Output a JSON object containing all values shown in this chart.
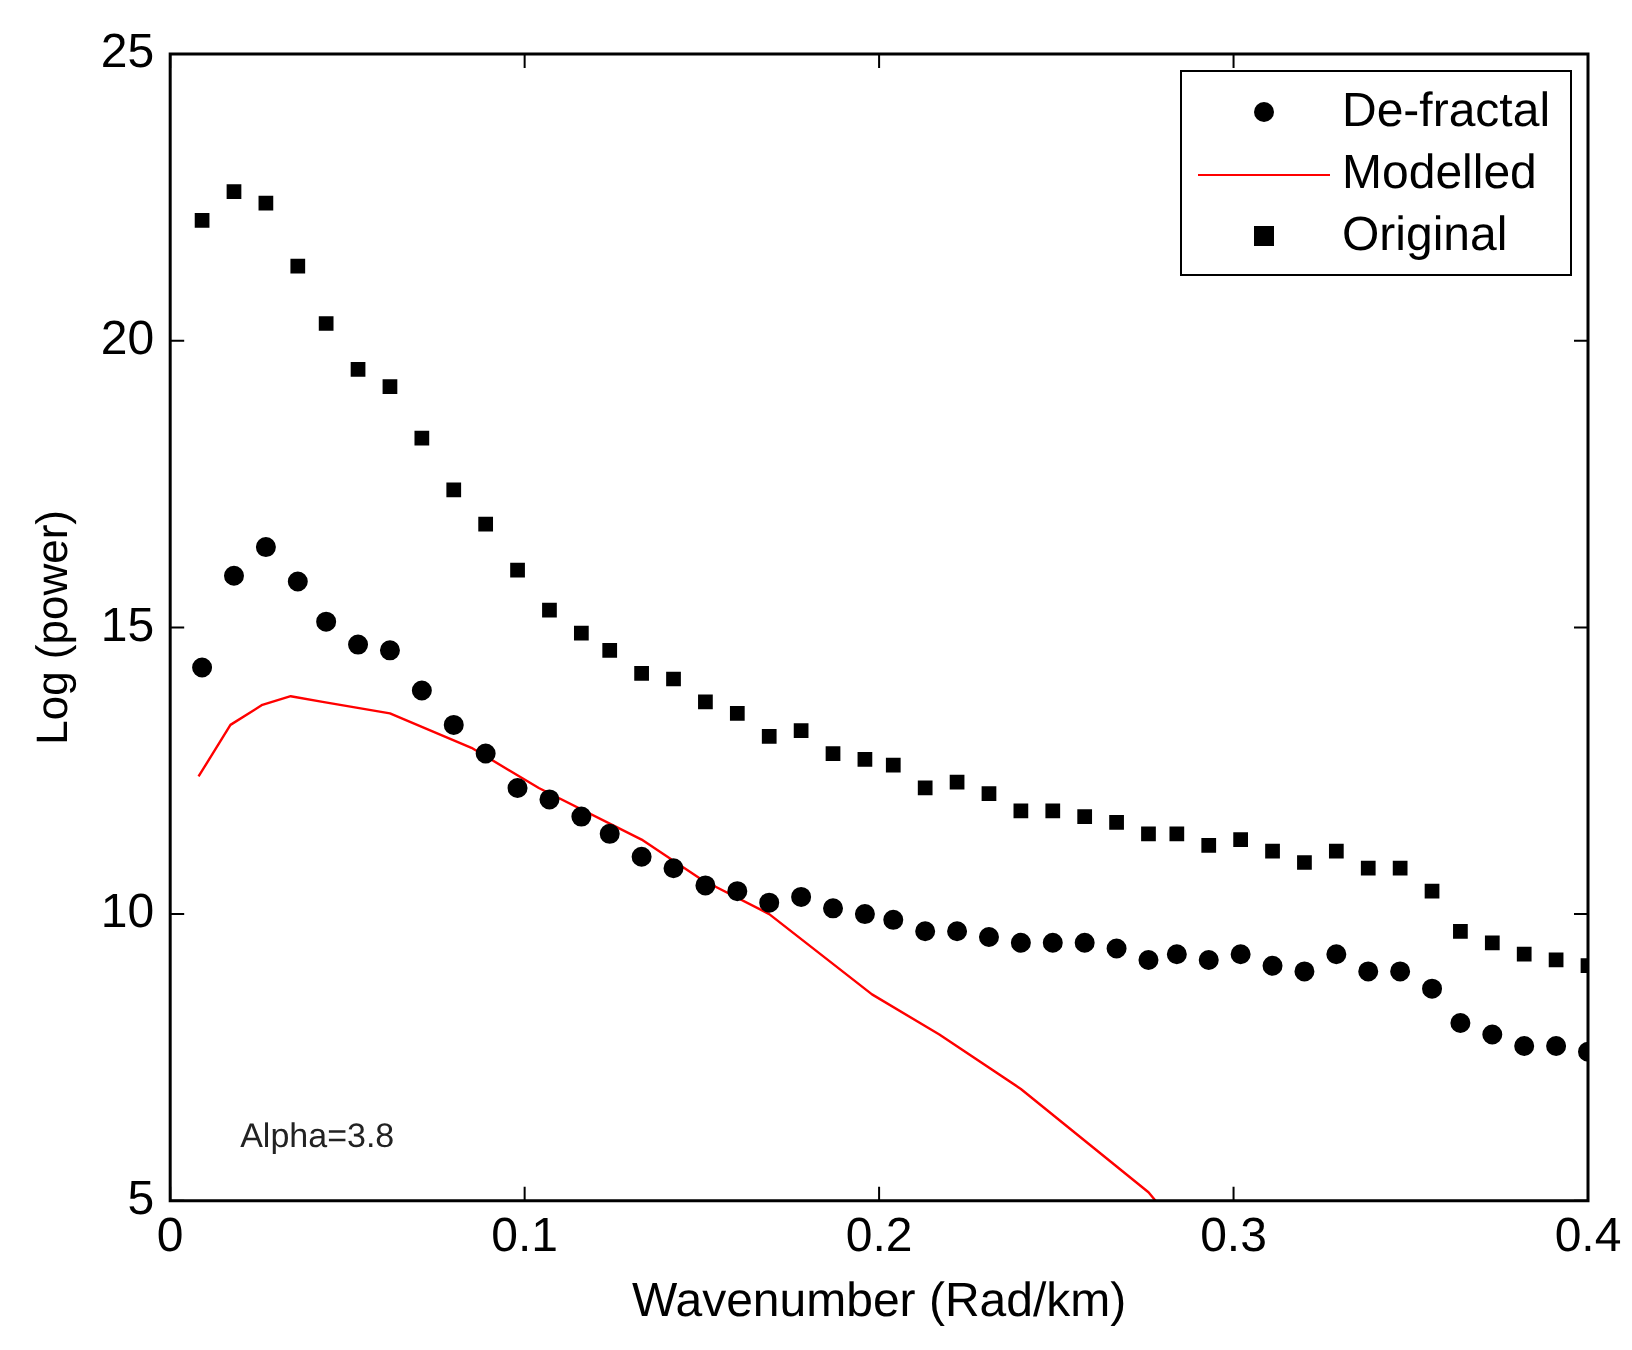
{
  "chart_data": {
    "type": "scatter",
    "xlabel": "Wavenumber (Rad/km)",
    "ylabel": "Log (power)",
    "xlim": [
      0,
      0.4
    ],
    "xticks": [
      0,
      0.1,
      0.2,
      0.3,
      0.4
    ],
    "ylim": [
      5,
      25
    ],
    "yticks": [
      5,
      10,
      15,
      20,
      25
    ],
    "legend": "top right",
    "annotations": [
      "Alpha=3.8"
    ],
    "x": [
      0.009,
      0.018,
      0.027,
      0.036,
      0.044,
      0.053,
      0.062,
      0.071,
      0.08,
      0.089,
      0.098,
      0.107,
      0.116,
      0.124,
      0.133,
      0.142,
      0.151,
      0.16,
      0.169,
      0.178,
      0.187,
      0.196,
      0.204,
      0.213,
      0.222,
      0.231,
      0.24,
      0.249,
      0.258,
      0.267,
      0.276,
      0.284,
      0.293,
      0.302,
      0.311,
      0.32,
      0.329,
      0.338,
      0.347,
      0.356,
      0.364,
      0.373,
      0.382,
      0.391,
      0.4
    ],
    "series": [
      {
        "name": "De-fractal",
        "color": "#000000",
        "marker": "circle",
        "values": [
          14.3,
          15.9,
          16.4,
          15.8,
          15.1,
          14.7,
          14.6,
          13.9,
          13.3,
          12.8,
          12.2,
          12.0,
          11.7,
          11.4,
          11.0,
          10.8,
          10.5,
          10.4,
          10.2,
          10.3,
          10.1,
          10.0,
          9.9,
          9.7,
          9.7,
          9.6,
          9.5,
          9.5,
          9.5,
          9.4,
          9.2,
          9.3,
          9.2,
          9.3,
          9.1,
          9.0,
          9.3,
          9.0,
          9.0,
          8.7,
          8.1,
          7.9,
          7.7,
          7.7,
          7.6
        ]
      },
      {
        "name": "Modelled",
        "type": "line",
        "color": "#ff0000",
        "marker": "none",
        "x": [
          0.008,
          0.017,
          0.026,
          0.034,
          0.043,
          0.062,
          0.085,
          0.104,
          0.133,
          0.15,
          0.169,
          0.198,
          0.217,
          0.24,
          0.259,
          0.276,
          0.278
        ],
        "values": [
          12.4,
          13.3,
          13.65,
          13.8,
          13.7,
          13.5,
          12.9,
          12.2,
          11.3,
          10.6,
          10.0,
          8.6,
          7.9,
          6.95,
          6.0,
          5.15,
          5.0
        ]
      },
      {
        "name": "Original",
        "color": "#000000",
        "marker": "square",
        "values": [
          22.1,
          22.6,
          22.4,
          21.3,
          20.3,
          19.5,
          19.2,
          18.3,
          17.4,
          16.8,
          16.0,
          15.3,
          14.9,
          14.6,
          14.2,
          14.1,
          13.7,
          13.5,
          13.1,
          13.2,
          12.8,
          12.7,
          12.6,
          12.2,
          12.3,
          12.1,
          11.8,
          11.8,
          11.7,
          11.6,
          11.4,
          11.4,
          11.2,
          11.3,
          11.1,
          10.9,
          11.1,
          10.8,
          10.8,
          10.4,
          9.7,
          9.5,
          9.3,
          9.2,
          9.1
        ]
      }
    ]
  }
}
